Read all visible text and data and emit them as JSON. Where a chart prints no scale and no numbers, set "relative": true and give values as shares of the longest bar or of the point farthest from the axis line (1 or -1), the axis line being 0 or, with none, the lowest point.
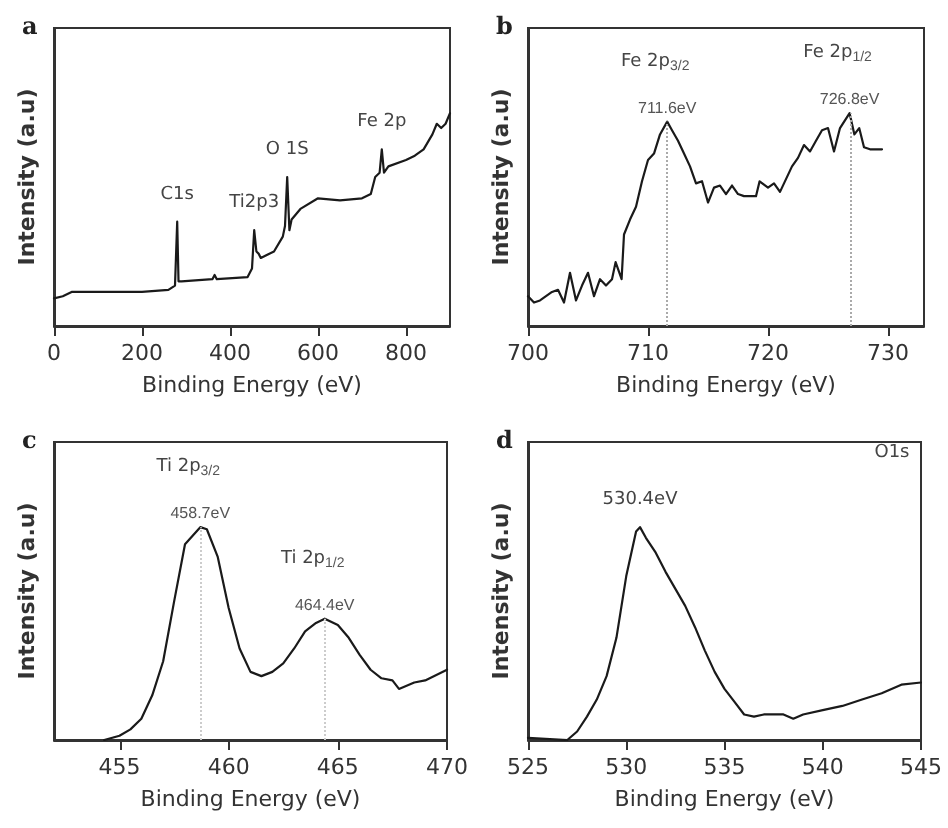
{
  "chart_data": [
    {
      "type": "line",
      "title": "a",
      "xlabel": "Binding Energy (eV)",
      "ylabel": "Intensity (a.u)",
      "relative": true,
      "xlim": [
        0,
        900
      ],
      "xticks": [
        0,
        200,
        400,
        600,
        800
      ],
      "grid": false,
      "marker": "none",
      "line_style": "solid",
      "series": [
        {
          "color": "#1a1a1a",
          "x": [
            0,
            20,
            40,
            100,
            200,
            260,
            275,
            280,
            283,
            290,
            360,
            365,
            370,
            440,
            450,
            455,
            460,
            465,
            470,
            500,
            520,
            525,
            530,
            535,
            540,
            560,
            600,
            650,
            700,
            720,
            730,
            740,
            745,
            750,
            760,
            800,
            820,
            840,
            860,
            870,
            880,
            890,
            900
          ],
          "values": [
            0.13,
            0.14,
            0.16,
            0.16,
            0.16,
            0.17,
            0.19,
            0.49,
            0.21,
            0.21,
            0.22,
            0.24,
            0.22,
            0.23,
            0.27,
            0.45,
            0.35,
            0.34,
            0.32,
            0.35,
            0.42,
            0.47,
            0.7,
            0.45,
            0.5,
            0.55,
            0.6,
            0.59,
            0.6,
            0.62,
            0.7,
            0.72,
            0.83,
            0.72,
            0.75,
            0.78,
            0.8,
            0.83,
            0.9,
            0.95,
            0.93,
            0.95,
            1
          ]
        }
      ],
      "annotations": [
        {
          "text": "C1s",
          "x": 280,
          "y": 0.49
        },
        {
          "text": "Ti2p3",
          "x": 455,
          "y": 0.45
        },
        {
          "text": "O 1S",
          "x": 530,
          "y": 0.7
        },
        {
          "text": "Fe 2p",
          "x": 745,
          "y": 0.83
        }
      ]
    },
    {
      "type": "line",
      "title": "b",
      "xlabel": "Binding Energy (eV)",
      "ylabel": "Intensity (a.u)",
      "relative": true,
      "xlim": [
        700,
        733
      ],
      "xticks": [
        700,
        710,
        720,
        730
      ],
      "grid": false,
      "marker": "none",
      "line_style": "solid",
      "series": [
        {
          "color": "#1a1a1a",
          "x": [
            700,
            700.5,
            701,
            702,
            702.5,
            703,
            703.5,
            704,
            704.5,
            705,
            705.5,
            706,
            706.5,
            707,
            707.3,
            707.8,
            708,
            708.5,
            709,
            709.5,
            710,
            710.5,
            711,
            711.6,
            712,
            712.5,
            713,
            713.5,
            714,
            714.5,
            715,
            715.5,
            716,
            716.5,
            717,
            717.5,
            718,
            719,
            719.3,
            720,
            720.5,
            721,
            722,
            722.5,
            723,
            723.5,
            724,
            724.5,
            725,
            725.5,
            726,
            726.8,
            727.2,
            727.6,
            728,
            728.5,
            729.5
          ],
          "values": [
            0.14,
            0.11,
            0.12,
            0.16,
            0.17,
            0.11,
            0.25,
            0.12,
            0.19,
            0.25,
            0.14,
            0.22,
            0.19,
            0.22,
            0.3,
            0.22,
            0.43,
            0.5,
            0.56,
            0.68,
            0.78,
            0.81,
            0.9,
            0.96,
            0.92,
            0.87,
            0.81,
            0.75,
            0.67,
            0.68,
            0.58,
            0.65,
            0.66,
            0.62,
            0.66,
            0.62,
            0.61,
            0.61,
            0.68,
            0.65,
            0.67,
            0.63,
            0.75,
            0.79,
            0.85,
            0.82,
            0.87,
            0.92,
            0.93,
            0.82,
            0.93,
            1,
            0.9,
            0.93,
            0.84,
            0.83,
            0.83
          ]
        }
      ],
      "ref_lines": [
        {
          "axis": "x",
          "value": 711.6,
          "label": "711.6eV",
          "line_style": "dotted",
          "color": "#aaaaaa"
        },
        {
          "axis": "x",
          "value": 726.8,
          "label": "726.8eV",
          "line_style": "dotted",
          "color": "#aaaaaa"
        }
      ],
      "annotations": [
        {
          "text": "Fe 2p$_{3/2}$",
          "x": 711.6,
          "y": 0.96
        },
        {
          "text": "Fe 2p$_{1/2}$",
          "x": 726.8,
          "y": 1
        }
      ]
    },
    {
      "type": "line",
      "title": "c",
      "xlabel": "Binding Energy (eV)",
      "ylabel": "Intensity (a.u)",
      "relative": true,
      "xlim": [
        452,
        470
      ],
      "xticks": [
        455,
        460,
        465,
        470
      ],
      "grid": false,
      "marker": "none",
      "line_style": "solid",
      "series": [
        {
          "color": "#1a1a1a",
          "x": [
            454.3,
            455,
            455.5,
            456,
            456.5,
            457,
            457.5,
            458,
            458.7,
            459,
            459.5,
            460,
            460.5,
            461,
            461.5,
            462,
            462.5,
            463,
            463.5,
            464,
            464.4,
            465,
            465.5,
            466,
            466.5,
            467,
            467.5,
            467.8,
            468.5,
            469,
            470
          ],
          "values": [
            0,
            0.02,
            0.05,
            0.1,
            0.21,
            0.37,
            0.65,
            0.92,
            1,
            0.99,
            0.86,
            0.62,
            0.43,
            0.32,
            0.3,
            0.32,
            0.36,
            0.43,
            0.51,
            0.55,
            0.57,
            0.54,
            0.48,
            0.4,
            0.33,
            0.29,
            0.28,
            0.24,
            0.27,
            0.28,
            0.33
          ]
        }
      ],
      "ref_lines": [
        {
          "axis": "x",
          "value": 458.7,
          "label": "458.7eV",
          "line_style": "dotted",
          "color": "#cccccc"
        },
        {
          "axis": "x",
          "value": 464.4,
          "label": "464.4eV",
          "line_style": "dotted",
          "color": "#cccccc"
        }
      ],
      "annotations": [
        {
          "text": "Ti 2p$_{3/2}$",
          "x": 458.7,
          "y": 1
        },
        {
          "text": "Ti 2p$_{1/2}$",
          "x": 464.4,
          "y": 0.57
        }
      ]
    },
    {
      "type": "line",
      "title": "d",
      "xlabel": "Binding Energy (eV)",
      "ylabel": "Intensity (a.u)",
      "relative": true,
      "xlim": [
        525,
        545
      ],
      "xticks": [
        525,
        530,
        535,
        540,
        545
      ],
      "grid": false,
      "marker": "none",
      "line_style": "solid",
      "series": [
        {
          "color": "#1a1a1a",
          "x": [
            525,
            527,
            527.5,
            528,
            528.5,
            529,
            529.5,
            530,
            530.5,
            530.7,
            531,
            531.5,
            532,
            532.5,
            533,
            533.5,
            534,
            534.5,
            535,
            535.5,
            536,
            536.5,
            537,
            538,
            538.5,
            539,
            540,
            541,
            542,
            543,
            544,
            545
          ],
          "values": [
            0.01,
            0,
            0.04,
            0.11,
            0.19,
            0.3,
            0.48,
            0.77,
            0.98,
            1,
            0.95,
            0.88,
            0.79,
            0.71,
            0.63,
            0.53,
            0.42,
            0.32,
            0.24,
            0.18,
            0.12,
            0.11,
            0.12,
            0.12,
            0.1,
            0.12,
            0.14,
            0.16,
            0.19,
            0.22,
            0.26,
            0.27
          ]
        }
      ],
      "annotations": [
        {
          "text": "530.4eV",
          "x": 530.7,
          "y": 1
        },
        "O1s"
      ]
    }
  ]
}
